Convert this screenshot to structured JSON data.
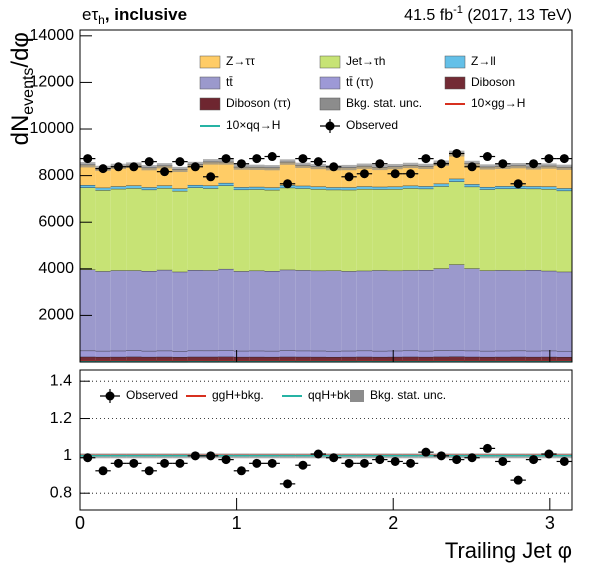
{
  "chart_data": {
    "type": "stacked_histogram",
    "title": [
      "eτ",
      "h",
      ", inclusive"
    ],
    "lumi": [
      "41.5 fb",
      "-1",
      " (2017, 13 TeV)"
    ],
    "ylabel": [
      "dN",
      "events",
      "/dφ"
    ],
    "xlabel": "Trailing Jet  φ",
    "bins": [
      0,
      0.0982,
      0.1963,
      0.2945,
      0.3927,
      0.4909,
      0.589,
      0.6872,
      0.7854,
      0.8836,
      0.9817,
      1.0799,
      1.1781,
      1.2763,
      1.3744,
      1.4726,
      1.5708,
      1.669,
      1.7671,
      1.8653,
      1.9635,
      2.0617,
      2.1598,
      2.258,
      2.3562,
      2.4544,
      2.5525,
      2.6507,
      2.7489,
      2.8471,
      2.9452,
      3.0434,
      3.1416
    ],
    "xlim": [
      0,
      3.1416
    ],
    "xticks": [
      0,
      1,
      2,
      3
    ],
    "ylim": [
      0,
      14250
    ],
    "yticks": [
      2000,
      4000,
      6000,
      8000,
      10000,
      12000,
      14000
    ],
    "series": [
      {
        "name": "Diboson (ττ)",
        "color": "#6e2630",
        "values": [
          52,
          50,
          51,
          53,
          50,
          52,
          49,
          51,
          52,
          53,
          50,
          51,
          50,
          52,
          51,
          50,
          49,
          51,
          52,
          50,
          51,
          52,
          50,
          53,
          55,
          52,
          50,
          51,
          52,
          50,
          51,
          49
        ]
      },
      {
        "name": "Diboson",
        "color": "#732b35",
        "values": [
          172,
          168,
          170,
          174,
          169,
          171,
          167,
          173,
          172,
          175,
          169,
          170,
          168,
          173,
          171,
          170,
          167,
          169,
          172,
          168,
          170,
          173,
          169,
          174,
          178,
          171,
          168,
          170,
          172,
          169,
          171,
          167
        ]
      },
      {
        "name": "tt̄ (ττ)",
        "color": "#9d99d6",
        "values": [
          262,
          258,
          260,
          264,
          257,
          261,
          256,
          263,
          262,
          266,
          259,
          260,
          258,
          264,
          261,
          260,
          257,
          259,
          262,
          258,
          260,
          263,
          259,
          265,
          272,
          261,
          258,
          260,
          262,
          259,
          261,
          257
        ]
      },
      {
        "name": "tt̄",
        "color": "#9b99cc",
        "values": [
          3480,
          3420,
          3450,
          3440,
          3430,
          3470,
          3400,
          3460,
          3450,
          3500,
          3420,
          3440,
          3430,
          3470,
          3460,
          3440,
          3450,
          3420,
          3430,
          3460,
          3440,
          3450,
          3470,
          3520,
          3680,
          3530,
          3450,
          3460,
          3440,
          3470,
          3430,
          3400
        ]
      },
      {
        "name": "Jet→τh",
        "color": "#c7e375",
        "values": [
          3520,
          3480,
          3500,
          3530,
          3490,
          3510,
          3470,
          3540,
          3520,
          3580,
          3500,
          3490,
          3480,
          3520,
          3510,
          3500,
          3470,
          3490,
          3510,
          3480,
          3500,
          3520,
          3490,
          3530,
          3560,
          3510,
          3480,
          3500,
          3520,
          3490,
          3510,
          3480
        ]
      },
      {
        "name": "Z→ll",
        "color": "#64c0e8",
        "values": [
          110,
          105,
          108,
          112,
          104,
          109,
          103,
          111,
          115,
          112,
          107,
          106,
          104,
          113,
          110,
          108,
          105,
          107,
          109,
          104,
          106,
          110,
          108,
          112,
          120,
          109,
          106,
          107,
          110,
          104,
          108,
          105
        ]
      },
      {
        "name": "Z→ττ",
        "color": "#ffcc66",
        "values": [
          870,
          830,
          860,
          880,
          840,
          850,
          820,
          880,
          1020,
          900,
          860,
          840,
          850,
          990,
          880,
          860,
          840,
          850,
          870,
          830,
          860,
          870,
          850,
          880,
          1080,
          890,
          860,
          850,
          870,
          830,
          880,
          900
        ]
      }
    ],
    "uncertainty": {
      "name": "Bkg. stat. unc.",
      "color": "#8c8c8c",
      "values": [
        115,
        112,
        113,
        114,
        112,
        113,
        111,
        114,
        118,
        116,
        113,
        113,
        112,
        117,
        114,
        113,
        112,
        113,
        114,
        112,
        113,
        114,
        113,
        116,
        125,
        114,
        112,
        113,
        114,
        112,
        114,
        113
      ]
    },
    "signals": [
      {
        "name": "10×gg→H",
        "color": "#d7301f",
        "values": [
          26,
          25,
          27,
          26,
          25,
          26,
          25,
          27,
          26,
          27,
          25,
          26,
          25,
          27,
          26,
          25,
          26,
          25,
          27,
          26,
          25,
          26,
          26,
          27,
          28,
          26,
          25,
          26,
          27,
          25,
          26,
          25
        ]
      },
      {
        "name": "10×qq→H",
        "color": "#26b3a4",
        "values": [
          9,
          9,
          10,
          9,
          9,
          9,
          8,
          10,
          9,
          10,
          9,
          9,
          9,
          10,
          9,
          9,
          9,
          9,
          10,
          9,
          9,
          9,
          9,
          10,
          10,
          9,
          9,
          9,
          10,
          9,
          9,
          9
        ]
      }
    ],
    "observed": {
      "name": "Observed",
      "values": [
        8730,
        8300,
        8380,
        8380,
        8600,
        8170,
        8600,
        8380,
        7950,
        8730,
        8510,
        8730,
        8820,
        7650,
        8730,
        8600,
        8380,
        7950,
        8080,
        8510,
        8080,
        8080,
        8730,
        8510,
        8950,
        8380,
        8820,
        8510,
        7650,
        8510,
        8730,
        8730
      ],
      "errors": [
        93,
        91,
        92,
        92,
        93,
        90,
        93,
        92,
        89,
        93,
        92,
        93,
        94,
        87,
        93,
        93,
        92,
        89,
        90,
        92,
        90,
        90,
        93,
        92,
        95,
        92,
        94,
        92,
        87,
        92,
        93,
        93
      ]
    },
    "ratio": {
      "ylim": [
        0.71,
        1.46
      ],
      "yticks": [
        0.8,
        1,
        1.2,
        1.4
      ],
      "grid": true,
      "observed": {
        "name": "Observed",
        "values": [
          0.99,
          0.92,
          0.96,
          0.96,
          0.92,
          0.96,
          0.96,
          1.0,
          1.0,
          0.98,
          0.92,
          0.96,
          0.96,
          0.85,
          0.95,
          1.01,
          0.99,
          0.96,
          0.96,
          0.98,
          0.97,
          0.96,
          1.02,
          1.0,
          0.98,
          0.99,
          1.04,
          0.97,
          0.87,
          0.98,
          1.01,
          0.97
        ],
        "errors": [
          0.011,
          0.011,
          0.011,
          0.011,
          0.011,
          0.011,
          0.011,
          0.011,
          0.011,
          0.011,
          0.011,
          0.011,
          0.011,
          0.011,
          0.011,
          0.011,
          0.011,
          0.011,
          0.011,
          0.011,
          0.011,
          0.011,
          0.011,
          0.011,
          0.011,
          0.011,
          0.011,
          0.011,
          0.011,
          0.011,
          0.011,
          0.011
        ]
      },
      "lines": [
        {
          "name": "ggH+bkg.",
          "color": "#d7301f",
          "values": [
            1.003,
            1.003,
            1.003,
            1.003,
            1.003,
            1.003,
            1.003,
            1.003,
            1.003,
            1.003,
            1.003,
            1.003,
            1.003,
            1.003,
            1.003,
            1.003,
            1.003,
            1.003,
            1.003,
            1.003,
            1.003,
            1.003,
            1.003,
            1.003,
            1.003,
            1.003,
            1.003,
            1.003,
            1.003,
            1.003,
            1.003,
            1.003
          ]
        },
        {
          "name": "qqH+bkg.",
          "color": "#26b3a4",
          "values": [
            1.001,
            1.001,
            1.001,
            1.001,
            1.001,
            1.001,
            1.001,
            1.001,
            1.001,
            1.001,
            1.001,
            1.001,
            1.001,
            1.001,
            1.001,
            1.001,
            1.001,
            1.001,
            1.001,
            1.001,
            1.001,
            1.001,
            1.001,
            1.001,
            1.001,
            1.001,
            1.001,
            1.001,
            1.001,
            1.001,
            1.001,
            1.001
          ]
        }
      ],
      "uncertainty": {
        "name": "Bkg. stat. unc.",
        "color": "#8c8c8c",
        "values": [
          0.013,
          0.013,
          0.013,
          0.013,
          0.013,
          0.013,
          0.013,
          0.013,
          0.013,
          0.013,
          0.013,
          0.013,
          0.013,
          0.013,
          0.013,
          0.013,
          0.013,
          0.013,
          0.013,
          0.013,
          0.013,
          0.013,
          0.013,
          0.013,
          0.013,
          0.013,
          0.013,
          0.013,
          0.013,
          0.013,
          0.013,
          0.013
        ]
      }
    }
  }
}
